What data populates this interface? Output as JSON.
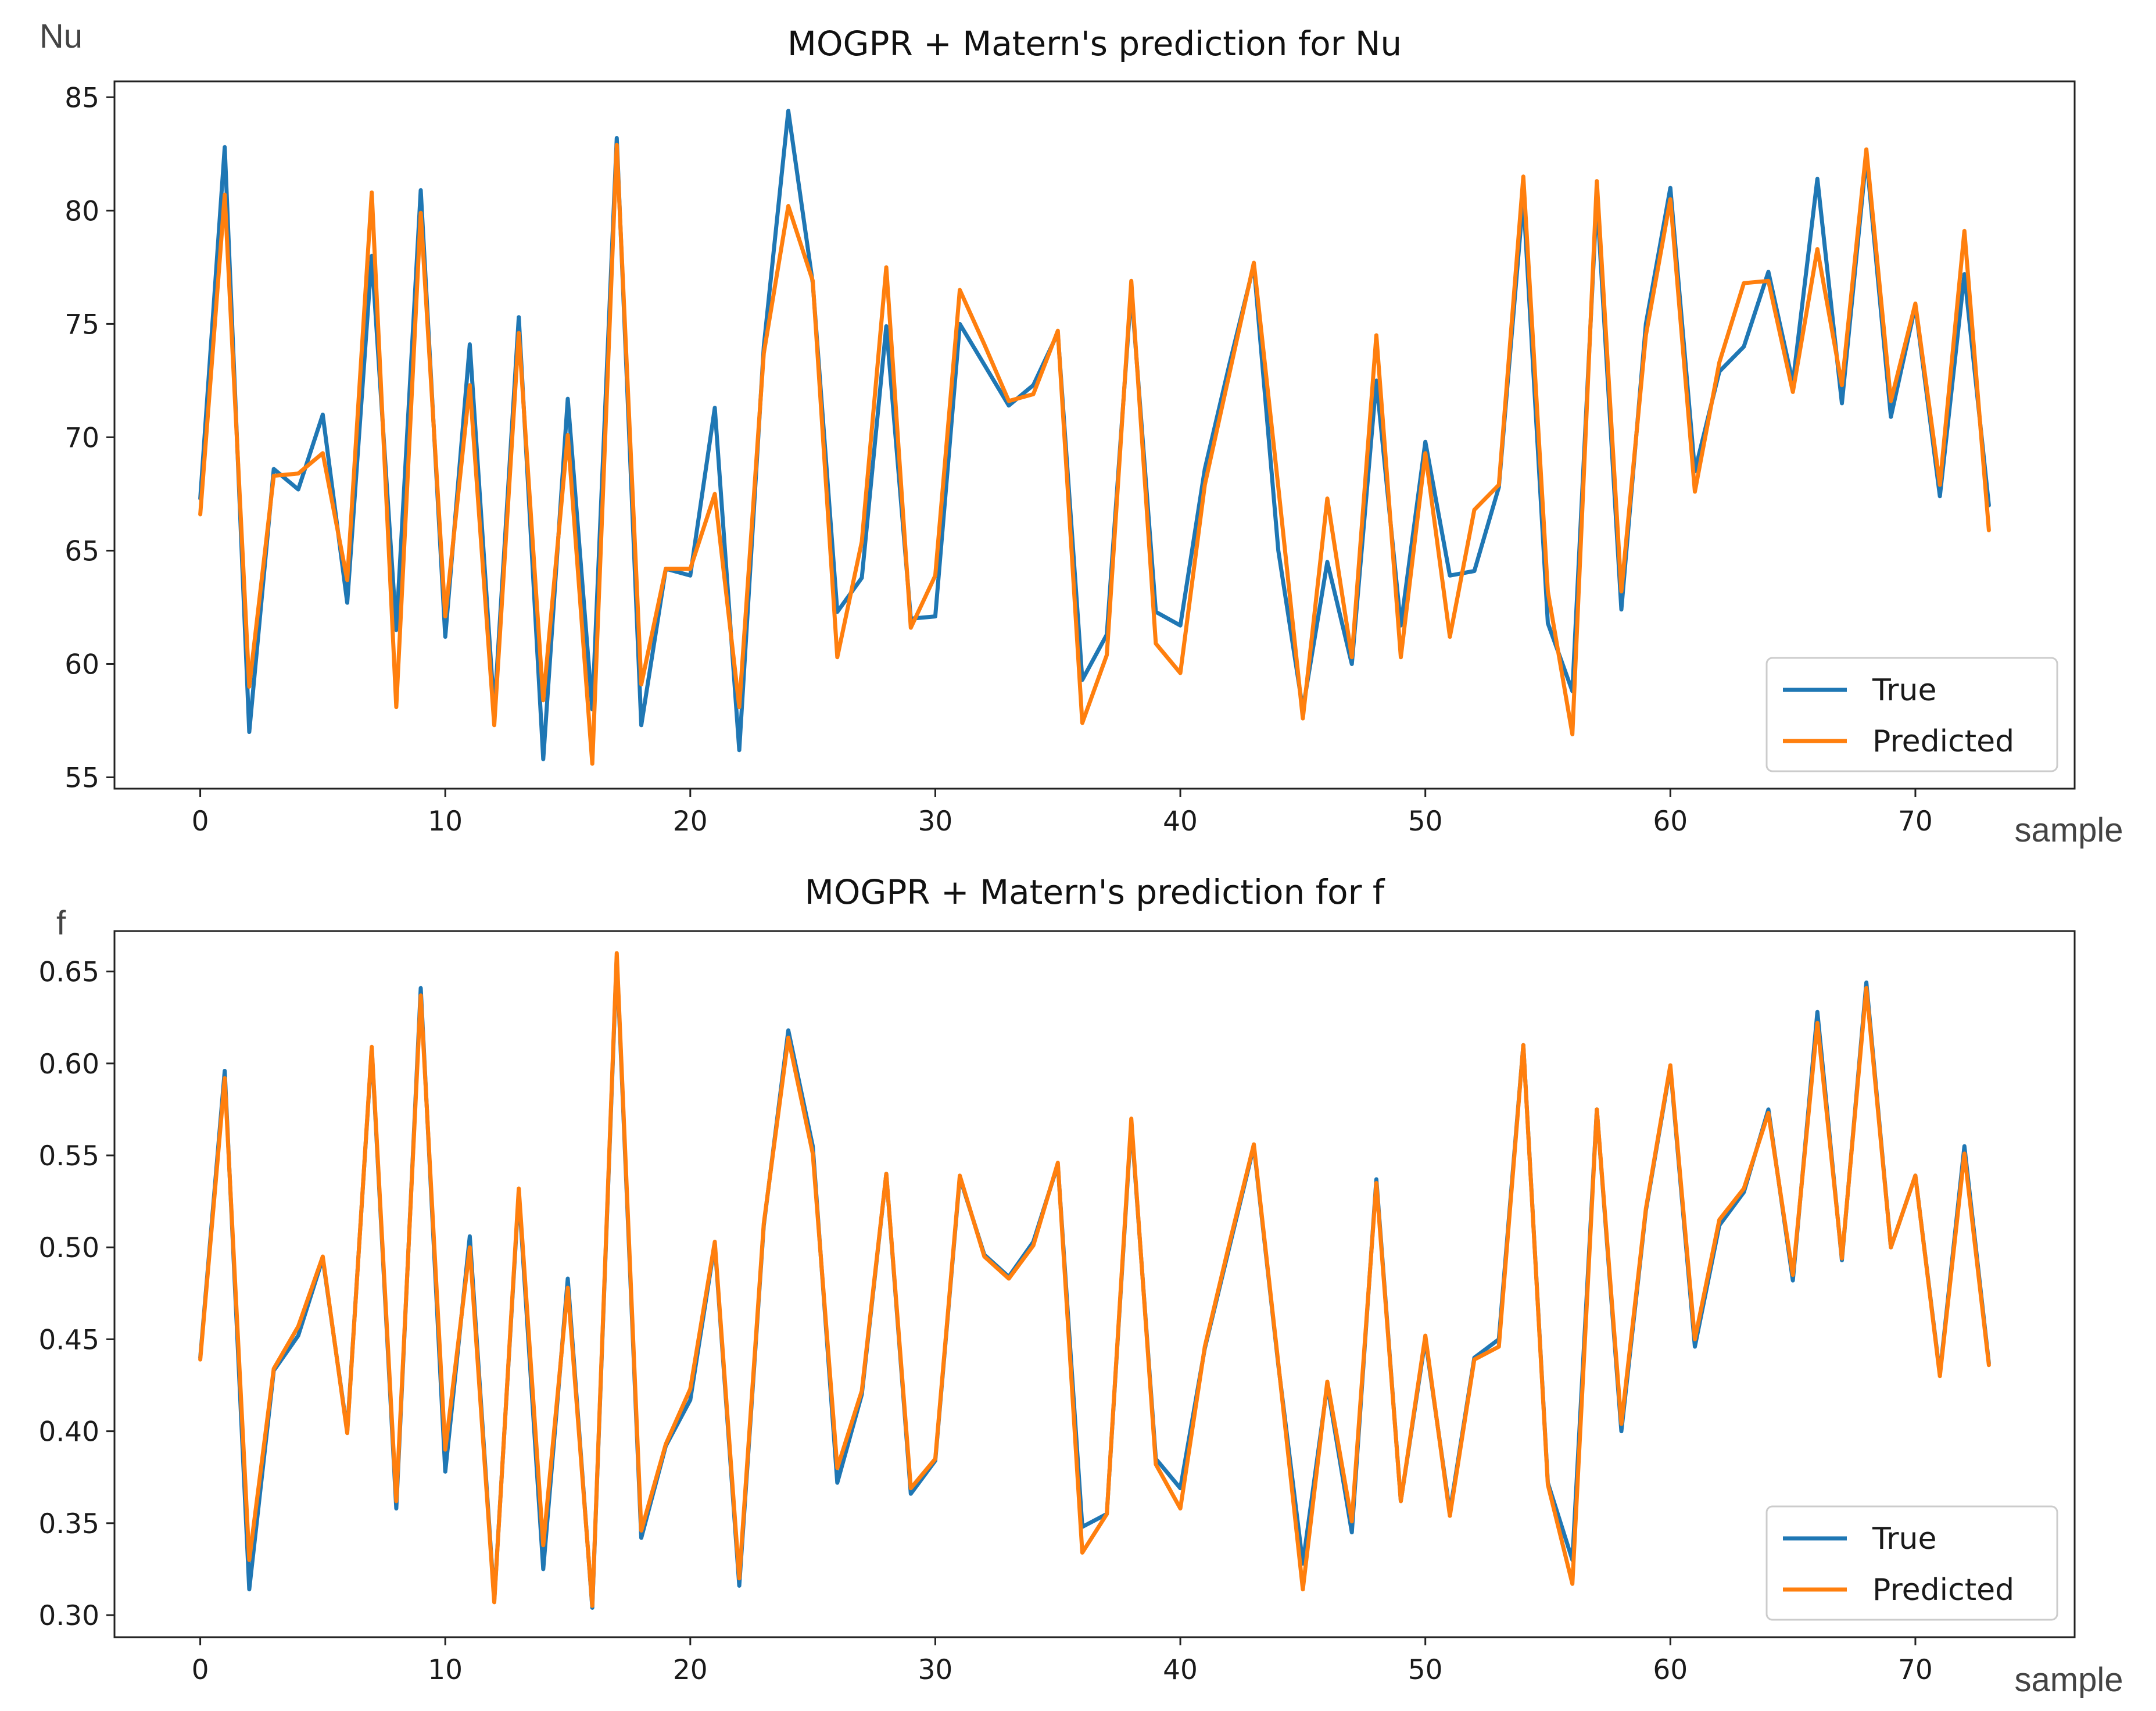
{
  "chart_data": [
    {
      "type": "line",
      "title": "MOGPR + Matern's prediction for Nu",
      "xlabel": "sample",
      "ylabel": "Nu",
      "xlim": [
        -3.5,
        76.5
      ],
      "ylim": [
        54.5,
        85.7
      ],
      "xticks": [
        0,
        10,
        20,
        30,
        40,
        50,
        60,
        70
      ],
      "yticks": [
        55,
        60,
        65,
        70,
        75,
        80,
        85
      ],
      "ytick_labels": [
        "55",
        "60",
        "65",
        "70",
        "75",
        "80",
        "85"
      ],
      "legend": {
        "location": "lower-right"
      },
      "series": [
        {
          "name": "True",
          "color": "#1f77b4",
          "values": [
            67.3,
            82.8,
            57.0,
            68.6,
            67.7,
            71.0,
            62.7,
            78.0,
            61.5,
            80.9,
            61.2,
            74.1,
            57.9,
            75.3,
            55.8,
            71.7,
            58.0,
            83.2,
            57.3,
            64.2,
            63.9,
            71.3,
            56.2,
            74.0,
            84.4,
            76.8,
            62.3,
            63.8,
            74.9,
            62.0,
            62.1,
            75.0,
            73.2,
            71.4,
            72.3,
            74.6,
            59.3,
            61.3,
            76.5,
            62.3,
            61.7,
            68.6,
            73.2,
            77.6,
            65.0,
            58.0,
            64.5,
            60.0,
            72.5,
            61.7,
            69.8,
            63.9,
            64.1,
            67.8,
            80.6,
            61.8,
            58.8,
            80.6,
            62.4,
            75.0,
            81.0,
            68.5,
            72.9,
            74.0,
            77.3,
            72.4,
            81.4,
            71.5,
            82.4,
            70.9,
            75.8,
            67.4,
            77.2,
            67.0
          ]
        },
        {
          "name": "Predicted",
          "color": "#ff7f0e",
          "values": [
            66.6,
            80.7,
            59.0,
            68.3,
            68.4,
            69.3,
            63.7,
            80.8,
            58.1,
            79.9,
            62.1,
            72.3,
            57.3,
            74.6,
            58.4,
            70.1,
            55.6,
            82.9,
            59.1,
            64.2,
            64.2,
            67.5,
            58.1,
            73.7,
            80.2,
            76.9,
            60.3,
            65.4,
            77.5,
            61.6,
            63.9,
            76.5,
            74.1,
            71.6,
            71.9,
            74.7,
            57.4,
            60.4,
            76.9,
            60.9,
            59.6,
            67.9,
            72.8,
            77.7,
            67.8,
            57.6,
            67.3,
            60.3,
            74.5,
            60.3,
            69.3,
            61.2,
            66.8,
            67.9,
            81.5,
            63.2,
            56.9,
            81.3,
            63.2,
            74.5,
            80.5,
            67.6,
            73.3,
            76.8,
            76.9,
            72.0,
            78.3,
            72.3,
            82.7,
            71.6,
            75.9,
            67.9,
            79.1,
            65.9
          ]
        }
      ]
    },
    {
      "type": "line",
      "title": "MOGPR + Matern's prediction for f",
      "xlabel": "sample",
      "ylabel": "f",
      "xlim": [
        -3.5,
        76.5
      ],
      "ylim": [
        0.288,
        0.672
      ],
      "xticks": [
        0,
        10,
        20,
        30,
        40,
        50,
        60,
        70
      ],
      "yticks": [
        0.3,
        0.35,
        0.4,
        0.45,
        0.5,
        0.55,
        0.6,
        0.65
      ],
      "ytick_labels": [
        "0.30",
        "0.35",
        "0.40",
        "0.45",
        "0.50",
        "0.55",
        "0.60",
        "0.65"
      ],
      "legend": {
        "location": "lower-right"
      },
      "series": [
        {
          "name": "True",
          "color": "#1f77b4",
          "values": [
            0.44,
            0.596,
            0.314,
            0.433,
            0.452,
            0.494,
            0.4,
            0.608,
            0.358,
            0.641,
            0.378,
            0.506,
            0.308,
            0.53,
            0.325,
            0.483,
            0.304,
            0.658,
            0.342,
            0.392,
            0.417,
            0.502,
            0.316,
            0.512,
            0.618,
            0.555,
            0.372,
            0.42,
            0.54,
            0.366,
            0.384,
            0.538,
            0.496,
            0.484,
            0.503,
            0.545,
            0.348,
            0.355,
            0.568,
            0.385,
            0.369,
            0.445,
            0.5,
            0.555,
            0.436,
            0.328,
            0.425,
            0.345,
            0.537,
            0.362,
            0.45,
            0.356,
            0.44,
            0.45,
            0.61,
            0.372,
            0.33,
            0.575,
            0.4,
            0.52,
            0.598,
            0.446,
            0.512,
            0.53,
            0.575,
            0.482,
            0.628,
            0.493,
            0.644,
            0.5,
            0.539,
            0.431,
            0.555,
            0.437
          ]
        },
        {
          "name": "Predicted",
          "color": "#ff7f0e",
          "values": [
            0.439,
            0.592,
            0.33,
            0.434,
            0.457,
            0.495,
            0.399,
            0.609,
            0.362,
            0.637,
            0.39,
            0.5,
            0.307,
            0.532,
            0.338,
            0.478,
            0.305,
            0.66,
            0.346,
            0.393,
            0.423,
            0.503,
            0.32,
            0.513,
            0.614,
            0.551,
            0.38,
            0.422,
            0.54,
            0.369,
            0.385,
            0.539,
            0.495,
            0.483,
            0.501,
            0.546,
            0.334,
            0.355,
            0.57,
            0.382,
            0.358,
            0.446,
            0.502,
            0.556,
            0.437,
            0.314,
            0.427,
            0.351,
            0.535,
            0.362,
            0.452,
            0.354,
            0.439,
            0.446,
            0.61,
            0.371,
            0.317,
            0.575,
            0.404,
            0.521,
            0.599,
            0.45,
            0.515,
            0.532,
            0.573,
            0.485,
            0.622,
            0.494,
            0.641,
            0.5,
            0.539,
            0.43,
            0.551,
            0.436
          ]
        }
      ]
    }
  ]
}
